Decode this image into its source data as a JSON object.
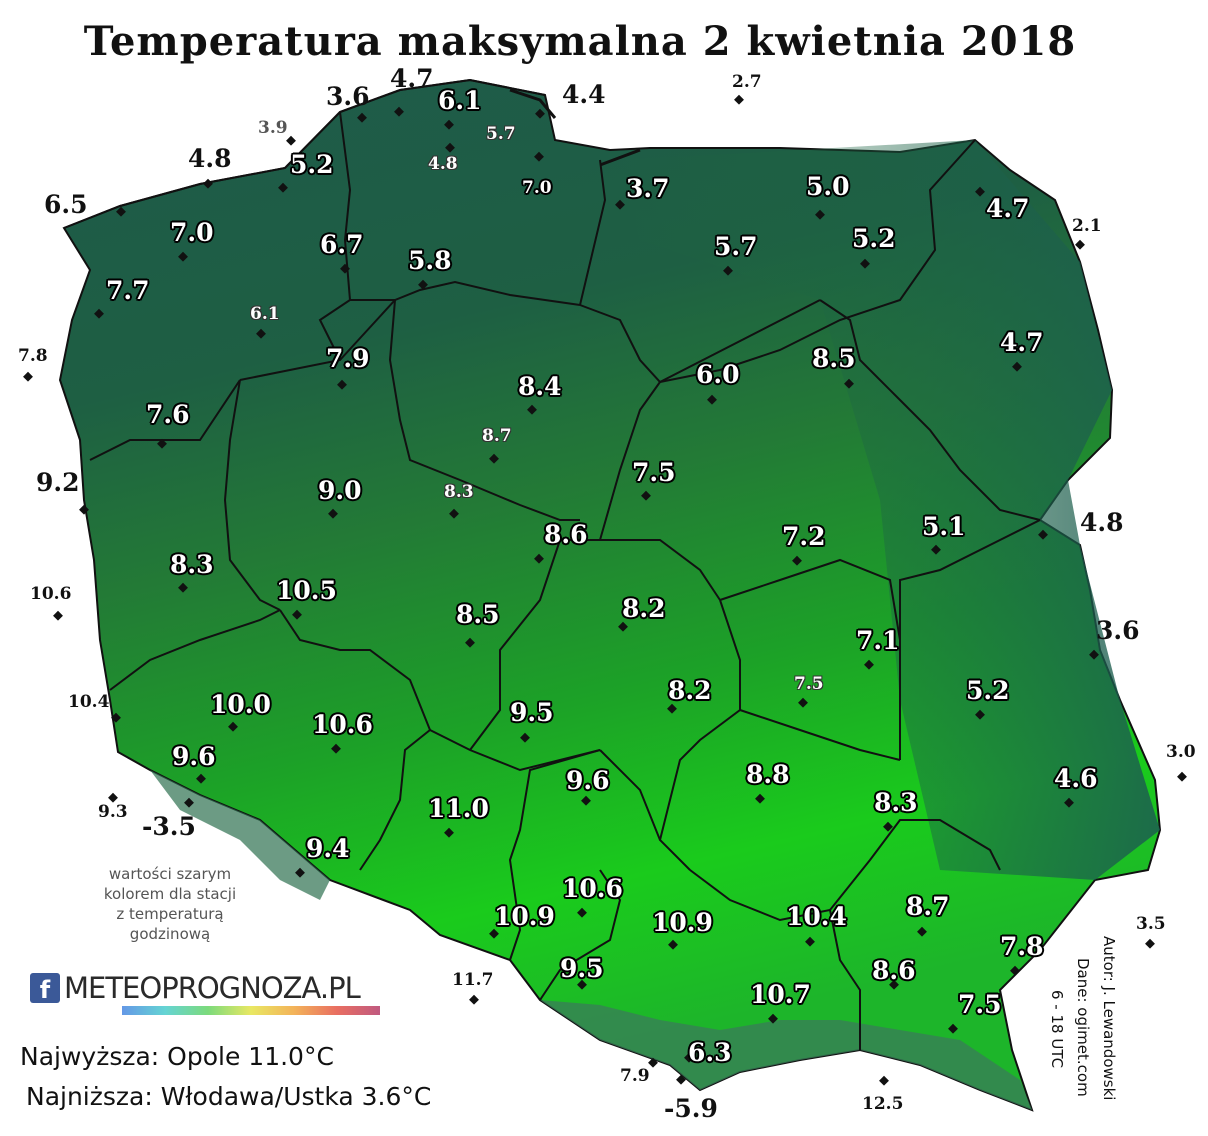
{
  "title": "Temperatura maksymalna 2 kwietnia 2018",
  "colors": {
    "north_dark": "#1d5a48",
    "center_mid": "#237a35",
    "south_bright": "#1bd01b",
    "mountain": "#2f6e4f",
    "border": "#111111"
  },
  "stations": [
    {
      "v": "4.7"
    },
    {
      "v": "3.6"
    },
    {
      "v": "6.1"
    },
    {
      "v": "4.4"
    },
    {
      "v": "2.7"
    },
    {
      "v": "3.9"
    },
    {
      "v": "5.7"
    },
    {
      "v": "4.8"
    },
    {
      "v": "5.2"
    },
    {
      "v": "4.8"
    },
    {
      "v": "7.0"
    },
    {
      "v": "3.7"
    },
    {
      "v": "5.0"
    },
    {
      "v": "4.7"
    },
    {
      "v": "6.5"
    },
    {
      "v": "7.0"
    },
    {
      "v": "2.1"
    },
    {
      "v": "6.7"
    },
    {
      "v": "5.7"
    },
    {
      "v": "5.2"
    },
    {
      "v": "5.8"
    },
    {
      "v": "7.7"
    },
    {
      "v": "6.1"
    },
    {
      "v": "4.7"
    },
    {
      "v": "7.8"
    },
    {
      "v": "7.9"
    },
    {
      "v": "8.5"
    },
    {
      "v": "6.0"
    },
    {
      "v": "8.4"
    },
    {
      "v": "7.6"
    },
    {
      "v": "8.7"
    },
    {
      "v": "9.2"
    },
    {
      "v": "9.0"
    },
    {
      "v": "7.5"
    },
    {
      "v": "8.3"
    },
    {
      "v": "5.1"
    },
    {
      "v": "4.8"
    },
    {
      "v": "8.6"
    },
    {
      "v": "7.2"
    },
    {
      "v": "8.3"
    },
    {
      "v": "10.6"
    },
    {
      "v": "10.5"
    },
    {
      "v": "8.5"
    },
    {
      "v": "8.2"
    },
    {
      "v": "3.6"
    },
    {
      "v": "7.1"
    },
    {
      "v": "10.4"
    },
    {
      "v": "10.0"
    },
    {
      "v": "8.2"
    },
    {
      "v": "7.5"
    },
    {
      "v": "5.2"
    },
    {
      "v": "10.6"
    },
    {
      "v": "9.5"
    },
    {
      "v": "3.0"
    },
    {
      "v": "9.6"
    },
    {
      "v": "9.6"
    },
    {
      "v": "8.8"
    },
    {
      "v": "4.6"
    },
    {
      "v": "9.3"
    },
    {
      "v": "-3.5"
    },
    {
      "v": "11.0"
    },
    {
      "v": "8.3"
    },
    {
      "v": "9.4"
    },
    {
      "v": "10.6"
    },
    {
      "v": "8.7"
    },
    {
      "v": "10.9"
    },
    {
      "v": "10.9"
    },
    {
      "v": "10.4"
    },
    {
      "v": "3.5"
    },
    {
      "v": "7.8"
    },
    {
      "v": "9.5"
    },
    {
      "v": "8.6"
    },
    {
      "v": "11.7"
    },
    {
      "v": "10.7"
    },
    {
      "v": "7.5"
    },
    {
      "v": "6.3"
    },
    {
      "v": "7.9"
    },
    {
      "v": "12.5"
    },
    {
      "v": "-5.9"
    }
  ],
  "note": {
    "line1": "wartości szarym",
    "line2": "kolorem dla stacji",
    "line3": "z temperaturą",
    "line4": "godzinową"
  },
  "logo": {
    "fb": "f",
    "text": "METEOPROGNOZA.PL"
  },
  "stats": {
    "highest": "Najwyższa: Opole 11.0°C",
    "lowest": "Najniższa: Włodawa/Ustka 3.6°C"
  },
  "credits": {
    "author": "Autor: J. Lewandowski",
    "source": "Dane: ogimet.com",
    "period": "6 - 18 UTC"
  }
}
